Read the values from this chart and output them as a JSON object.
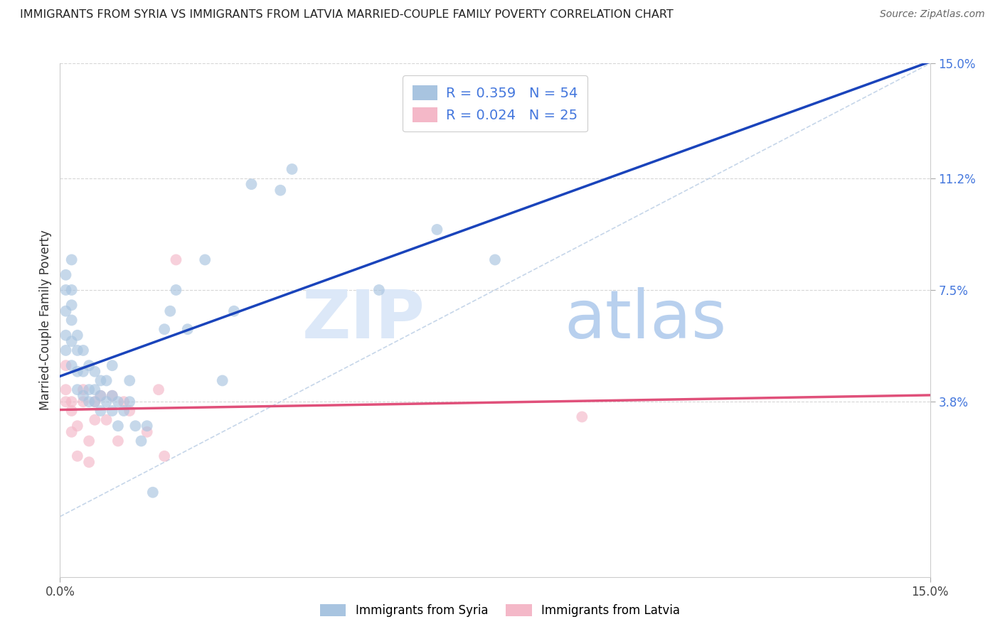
{
  "title": "IMMIGRANTS FROM SYRIA VS IMMIGRANTS FROM LATVIA MARRIED-COUPLE FAMILY POVERTY CORRELATION CHART",
  "source": "Source: ZipAtlas.com",
  "ylabel": "Married-Couple Family Poverty",
  "xlim": [
    0.0,
    0.15
  ],
  "ylim": [
    -0.02,
    0.15
  ],
  "syria_R": 0.359,
  "syria_N": 54,
  "latvia_R": 0.024,
  "latvia_N": 25,
  "syria_color": "#a8c4e0",
  "latvia_color": "#f4b8c8",
  "syria_line_color": "#1a44bb",
  "latvia_line_color": "#e0507a",
  "diagonal_color": "#b8cce4",
  "syria_x": [
    0.001,
    0.001,
    0.001,
    0.001,
    0.001,
    0.002,
    0.002,
    0.002,
    0.002,
    0.002,
    0.002,
    0.003,
    0.003,
    0.003,
    0.003,
    0.004,
    0.004,
    0.004,
    0.005,
    0.005,
    0.005,
    0.006,
    0.006,
    0.006,
    0.007,
    0.007,
    0.007,
    0.008,
    0.008,
    0.009,
    0.009,
    0.009,
    0.01,
    0.01,
    0.011,
    0.012,
    0.012,
    0.013,
    0.014,
    0.015,
    0.016,
    0.018,
    0.019,
    0.02,
    0.022,
    0.025,
    0.028,
    0.03,
    0.033,
    0.038,
    0.04,
    0.055,
    0.065,
    0.075
  ],
  "syria_y": [
    0.055,
    0.06,
    0.068,
    0.075,
    0.08,
    0.05,
    0.058,
    0.065,
    0.07,
    0.075,
    0.085,
    0.042,
    0.048,
    0.055,
    0.06,
    0.04,
    0.048,
    0.055,
    0.038,
    0.042,
    0.05,
    0.038,
    0.042,
    0.048,
    0.035,
    0.04,
    0.045,
    0.038,
    0.045,
    0.035,
    0.04,
    0.05,
    0.03,
    0.038,
    0.035,
    0.038,
    0.045,
    0.03,
    0.025,
    0.03,
    0.008,
    0.062,
    0.068,
    0.075,
    0.062,
    0.085,
    0.045,
    0.068,
    0.11,
    0.108,
    0.115,
    0.075,
    0.095,
    0.085
  ],
  "latvia_x": [
    0.001,
    0.001,
    0.001,
    0.002,
    0.002,
    0.002,
    0.003,
    0.003,
    0.004,
    0.004,
    0.005,
    0.005,
    0.006,
    0.006,
    0.007,
    0.008,
    0.009,
    0.01,
    0.011,
    0.012,
    0.015,
    0.017,
    0.018,
    0.02,
    0.09
  ],
  "latvia_y": [
    0.038,
    0.042,
    0.05,
    0.028,
    0.035,
    0.038,
    0.02,
    0.03,
    0.038,
    0.042,
    0.018,
    0.025,
    0.032,
    0.038,
    0.04,
    0.032,
    0.04,
    0.025,
    0.038,
    0.035,
    0.028,
    0.042,
    0.02,
    0.085,
    0.033
  ],
  "watermark_zip": "ZIP",
  "watermark_atlas": "atlas",
  "background_color": "#ffffff",
  "grid_color": "#cccccc",
  "ytick_vals": [
    0.038,
    0.075,
    0.112,
    0.15
  ],
  "ytick_labels": [
    "3.8%",
    "7.5%",
    "11.2%",
    "15.0%"
  ],
  "ytick_color": "#4477dd",
  "xtick_vals": [
    0.0,
    0.15
  ],
  "xtick_labels": [
    "0.0%",
    "15.0%"
  ],
  "plot_ylim_display": [
    0.0,
    0.15
  ]
}
